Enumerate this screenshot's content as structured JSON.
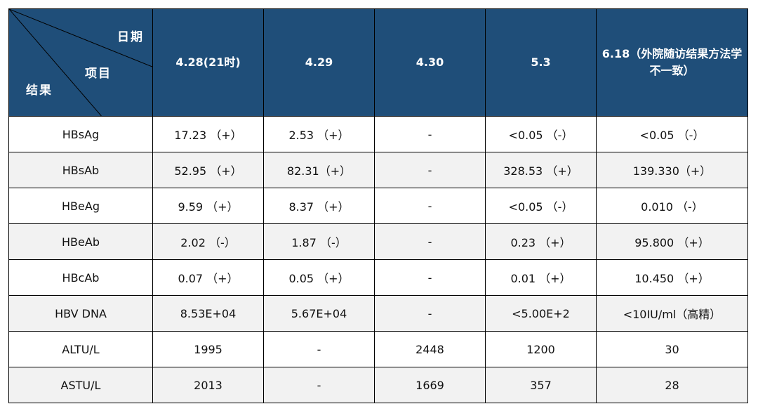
{
  "header": {
    "corner": {
      "date_label": "日期",
      "item_label": "项目",
      "result_label": "结果"
    },
    "columns": [
      "4.28(21时)",
      "4.29",
      "4.30",
      "5.3",
      "6.18（外院随访结果方法学不一致）"
    ]
  },
  "rows": [
    {
      "label": "HBsAg",
      "cells": [
        "17.23 （+）",
        "2.53 （+）",
        "-",
        "<0.05 （-）",
        "<0.05 （-）"
      ]
    },
    {
      "label": "HBsAb",
      "cells": [
        "52.95 （+）",
        "82.31（+）",
        "-",
        "328.53 （+）",
        "139.330（+）"
      ]
    },
    {
      "label": "HBeAg",
      "cells": [
        "9.59 （+）",
        "8.37 （+）",
        "-",
        "<0.05 （-）",
        "0.010 （-）"
      ]
    },
    {
      "label": "HBeAb",
      "cells": [
        "2.02 （-）",
        "1.87 （-）",
        "-",
        "0.23 （+）",
        "95.800 （+）"
      ]
    },
    {
      "label": "HBcAb",
      "cells": [
        "0.07 （+）",
        "0.05 （+）",
        "-",
        "0.01 （+）",
        "10.450 （+）"
      ]
    },
    {
      "label": "HBV DNA",
      "cells": [
        "8.53E+04",
        "5.67E+04",
        "-",
        "<5.00E+2",
        "<10IU/ml（高精）"
      ]
    },
    {
      "label": "ALTU/L",
      "cells": [
        "1995",
        "-",
        "2448",
        "1200",
        "30"
      ]
    },
    {
      "label": "ASTU/L",
      "cells": [
        "2013",
        "-",
        "1669",
        "357",
        "28"
      ]
    }
  ],
  "colors": {
    "header_bg": "#1f4e79",
    "header_text": "#ffffff",
    "row_alt_bg": "#f2f2f2",
    "row_bg": "#ffffff",
    "border": "#000000"
  }
}
